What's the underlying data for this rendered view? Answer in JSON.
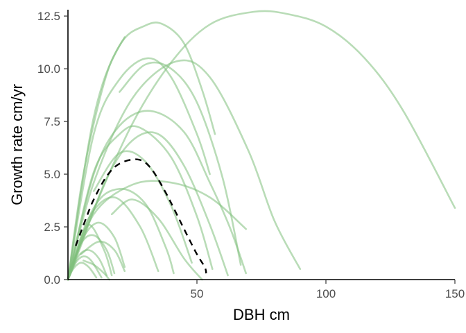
{
  "chart_data": {
    "type": "line",
    "title": "",
    "xlabel": "DBH cm",
    "ylabel": "Growth rate cm/yr",
    "xlim": [
      0,
      150
    ],
    "ylim": [
      0,
      12.8
    ],
    "x_ticks": [
      50,
      100,
      150
    ],
    "x_tick_labels": [
      "50",
      "100",
      "150"
    ],
    "y_ticks": [
      0,
      2.5,
      5,
      7.5,
      10,
      12.5
    ],
    "y_tick_labels": [
      "0.0",
      "2.5",
      "5.0",
      "7.5",
      "10.0",
      "12.5"
    ],
    "grid": false,
    "legend": false,
    "colors": {
      "species_curves": "#7fbf7b",
      "mean_curve": "#000000"
    },
    "series": [
      {
        "points": [
          [
            0,
            0
          ],
          [
            10,
            7.7
          ],
          [
            20,
            11.1
          ],
          [
            30,
            12.05
          ],
          [
            37,
            12.1
          ],
          [
            45,
            11.2
          ],
          [
            52,
            9.0
          ],
          [
            57,
            6.9
          ]
        ]
      },
      {
        "points": [
          [
            0,
            0
          ],
          [
            10,
            3.3
          ],
          [
            25,
            7.4
          ],
          [
            40,
            10.3
          ],
          [
            55,
            12.1
          ],
          [
            72,
            12.7
          ],
          [
            85,
            12.6
          ],
          [
            100,
            12.0
          ],
          [
            115,
            10.5
          ],
          [
            130,
            8.0
          ],
          [
            150,
            3.4
          ]
        ]
      },
      {
        "points": [
          [
            0,
            0
          ],
          [
            10,
            6.9
          ],
          [
            20,
            9.5
          ],
          [
            31,
            10.5
          ],
          [
            40,
            9.6
          ],
          [
            50,
            6.9
          ],
          [
            55,
            5.0
          ]
        ]
      },
      {
        "points": [
          [
            0,
            0
          ],
          [
            10,
            4.6
          ],
          [
            25,
            8.6
          ],
          [
            42,
            10.35
          ],
          [
            55,
            9.6
          ],
          [
            70,
            6.1
          ],
          [
            80,
            2.8
          ],
          [
            90,
            0.5
          ]
        ]
      },
      {
        "points": [
          [
            0,
            0
          ],
          [
            10,
            5.0
          ],
          [
            20,
            7.3
          ],
          [
            32,
            8.0
          ],
          [
            45,
            7.0
          ],
          [
            55,
            4.6
          ],
          [
            63,
            2.4
          ],
          [
            69,
            0.3
          ]
        ]
      },
      {
        "points": [
          [
            0,
            0
          ],
          [
            10,
            5.1
          ],
          [
            20,
            6.9
          ],
          [
            28,
            7.2
          ],
          [
            40,
            5.8
          ],
          [
            50,
            3.0
          ],
          [
            56,
            0.5
          ]
        ]
      },
      {
        "points": [
          [
            0,
            0
          ],
          [
            10,
            3.1
          ],
          [
            25,
            4.5
          ],
          [
            40,
            4.6
          ],
          [
            55,
            3.9
          ],
          [
            69,
            2.4
          ]
        ]
      },
      {
        "points": [
          [
            0,
            0
          ],
          [
            10,
            3.4
          ],
          [
            20,
            4.3
          ],
          [
            30,
            3.6
          ],
          [
            38,
            1.5
          ],
          [
            41,
            0.3
          ]
        ]
      },
      {
        "points": [
          [
            0,
            0
          ],
          [
            8,
            2.9
          ],
          [
            18,
            3.9
          ],
          [
            28,
            2.5
          ],
          [
            35,
            0.4
          ]
        ]
      },
      {
        "points": [
          [
            0,
            0
          ],
          [
            6,
            2.0
          ],
          [
            12,
            2.7
          ],
          [
            18,
            2.0
          ],
          [
            22,
            0.6
          ]
        ]
      },
      {
        "points": [
          [
            0,
            0
          ],
          [
            5,
            1.7
          ],
          [
            10,
            2.1
          ],
          [
            15,
            1.4
          ],
          [
            18,
            0.3
          ]
        ]
      },
      {
        "points": [
          [
            0,
            0
          ],
          [
            4,
            1.1
          ],
          [
            8,
            1.4
          ],
          [
            12,
            1.0
          ],
          [
            15,
            0.2
          ]
        ]
      },
      {
        "points": [
          [
            0,
            0
          ],
          [
            3,
            0.8
          ],
          [
            6,
            1.1
          ],
          [
            9,
            0.9
          ],
          [
            13,
            0.1
          ]
        ]
      },
      {
        "points": [
          [
            0,
            0
          ],
          [
            2,
            0.5
          ],
          [
            5,
            0.8
          ],
          [
            8,
            0.6
          ],
          [
            11,
            0.1
          ]
        ]
      },
      {
        "points": [
          [
            6,
            0.9
          ],
          [
            10,
            0.7
          ],
          [
            14,
            0.3
          ],
          [
            16,
            0.0
          ]
        ]
      },
      {
        "points": [
          [
            0,
            0
          ],
          [
            3,
            1.2
          ],
          [
            8,
            2.6
          ],
          [
            14,
            1.4
          ],
          [
            17,
            0.2
          ]
        ]
      },
      {
        "points": [
          [
            10,
            4.2
          ],
          [
            20,
            6.0
          ],
          [
            30,
            5.6
          ],
          [
            40,
            3.5
          ],
          [
            48,
            0.8
          ]
        ]
      },
      {
        "points": [
          [
            17,
            3.1
          ],
          [
            25,
            3.8
          ],
          [
            35,
            2.9
          ],
          [
            45,
            1.0
          ],
          [
            52,
            0.0
          ]
        ]
      },
      {
        "points": [
          [
            0,
            0
          ],
          [
            5,
            4.3
          ],
          [
            10,
            7.4
          ],
          [
            16,
            10.1
          ],
          [
            22,
            11.5
          ]
        ]
      },
      {
        "points": [
          [
            20,
            8.9
          ],
          [
            30,
            10.2
          ],
          [
            40,
            10.0
          ],
          [
            50,
            8.4
          ],
          [
            60,
            4.8
          ],
          [
            67,
            0.7
          ]
        ]
      },
      {
        "points": [
          [
            5,
            1.2
          ],
          [
            12,
            1.8
          ],
          [
            18,
            1.4
          ],
          [
            22,
            0.4
          ]
        ]
      },
      {
        "points": [
          [
            0,
            0
          ],
          [
            5,
            1.6
          ],
          [
            15,
            4.8
          ],
          [
            25,
            6.6
          ],
          [
            35,
            6.9
          ],
          [
            45,
            5.4
          ],
          [
            55,
            2.6
          ],
          [
            62,
            0.2
          ]
        ]
      }
    ],
    "mean_series": {
      "dashed": true,
      "points": [
        [
          3,
          1.6
        ],
        [
          7,
          2.9
        ],
        [
          10,
          3.8
        ],
        [
          15,
          4.9
        ],
        [
          20,
          5.5
        ],
        [
          27,
          5.7
        ],
        [
          32,
          5.3
        ],
        [
          38,
          4.1
        ],
        [
          45,
          2.4
        ],
        [
          50,
          1.2
        ],
        [
          53,
          0.6
        ],
        [
          53.6,
          0.3
        ]
      ]
    }
  }
}
